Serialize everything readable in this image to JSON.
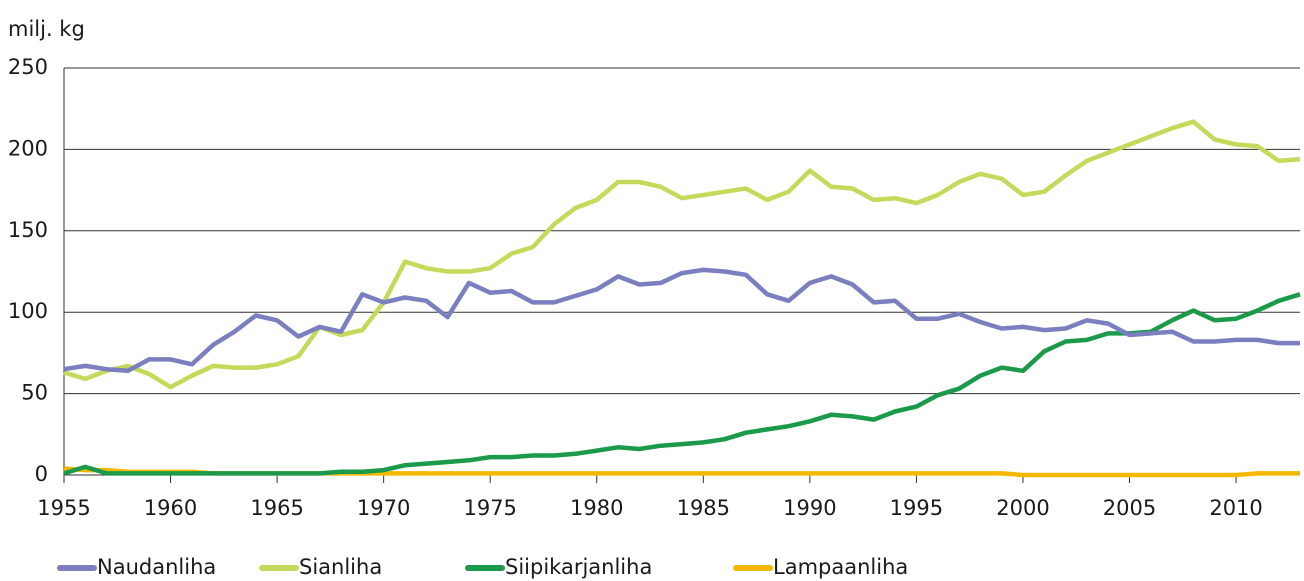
{
  "chart_data": {
    "type": "line",
    "y_label": "milj. kg",
    "x": [
      1955,
      1956,
      1957,
      1958,
      1959,
      1960,
      1961,
      1962,
      1963,
      1964,
      1965,
      1966,
      1967,
      1968,
      1969,
      1970,
      1971,
      1972,
      1973,
      1974,
      1975,
      1976,
      1977,
      1978,
      1979,
      1980,
      1981,
      1982,
      1983,
      1984,
      1985,
      1986,
      1987,
      1988,
      1989,
      1990,
      1991,
      1992,
      1993,
      1994,
      1995,
      1996,
      1997,
      1998,
      1999,
      2000,
      2001,
      2002,
      2003,
      2004,
      2005,
      2006,
      2007,
      2008,
      2009,
      2010,
      2011,
      2012,
      2013
    ],
    "series": [
      {
        "name": "Naudanliha",
        "color": "#7b7fc0",
        "values": [
          65,
          67,
          65,
          64,
          71,
          71,
          68,
          80,
          88,
          98,
          95,
          85,
          91,
          88,
          111,
          106,
          109,
          107,
          97,
          118,
          112,
          113,
          106,
          106,
          110,
          114,
          122,
          117,
          118,
          124,
          126,
          125,
          123,
          111,
          107,
          118,
          122,
          117,
          106,
          107,
          96,
          96,
          99,
          94,
          90,
          91,
          89,
          90,
          95,
          93,
          86,
          87,
          88,
          82,
          82,
          83,
          83,
          81,
          81
        ]
      },
      {
        "name": "Sianliha",
        "color": "#c5d95a",
        "values": [
          63,
          59,
          64,
          67,
          62,
          54,
          61,
          67,
          66,
          66,
          68,
          73,
          91,
          86,
          89,
          106,
          131,
          127,
          125,
          125,
          127,
          136,
          140,
          154,
          164,
          169,
          180,
          180,
          177,
          170,
          172,
          174,
          176,
          169,
          174,
          187,
          177,
          176,
          169,
          170,
          167,
          172,
          180,
          185,
          182,
          172,
          174,
          184,
          193,
          198,
          203,
          208,
          213,
          217,
          206,
          203,
          202,
          193,
          194
        ]
      },
      {
        "name": "Siipikarjanliha",
        "color": "#1a9a4a",
        "values": [
          1,
          5,
          1,
          1,
          1,
          1,
          1,
          1,
          1,
          1,
          1,
          1,
          1,
          2,
          2,
          3,
          6,
          7,
          8,
          9,
          11,
          11,
          12,
          12,
          13,
          15,
          17,
          16,
          18,
          19,
          20,
          22,
          26,
          28,
          30,
          33,
          37,
          36,
          34,
          39,
          42,
          49,
          53,
          61,
          66,
          64,
          76,
          82,
          83,
          87,
          87,
          88,
          95,
          101,
          95,
          96,
          101,
          107,
          111
        ]
      },
      {
        "name": "Lampaanliha",
        "color": "#f5b800",
        "values": [
          4,
          3,
          3,
          2,
          2,
          2,
          2,
          1,
          1,
          1,
          1,
          1,
          1,
          1,
          1,
          1,
          1,
          1,
          1,
          1,
          1,
          1,
          1,
          1,
          1,
          1,
          1,
          1,
          1,
          1,
          1,
          1,
          1,
          1,
          1,
          1,
          1,
          1,
          1,
          1,
          1,
          1,
          1,
          1,
          1,
          0,
          0,
          0,
          0,
          0,
          0,
          0,
          0,
          0,
          0,
          0,
          1,
          1,
          1
        ]
      }
    ],
    "xlim": [
      1955,
      2013
    ],
    "xticks": [
      1955,
      1960,
      1965,
      1970,
      1975,
      1980,
      1985,
      1990,
      1995,
      2000,
      2005,
      2010
    ],
    "ylim": [
      0,
      250
    ],
    "yticks": [
      0,
      50,
      100,
      150,
      200,
      250
    ],
    "grid": true,
    "legend": "bottom"
  }
}
